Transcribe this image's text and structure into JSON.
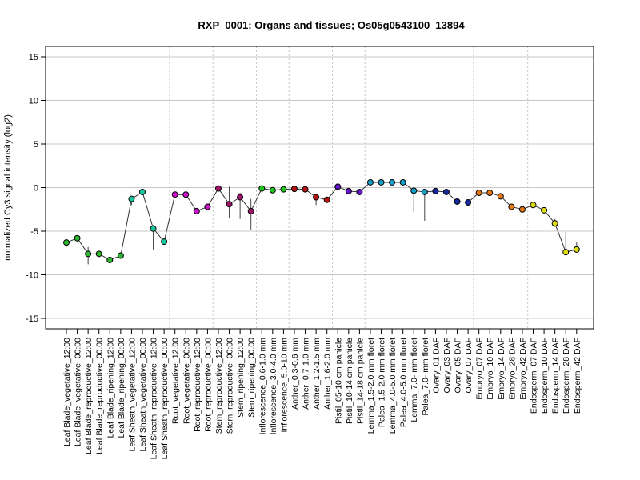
{
  "chart_data": {
    "type": "line",
    "title": "RXP_0001: Organs and tissues; Os05g0543100_13894",
    "xlabel": "",
    "ylabel": "normalized Cy3 signal intensity (log2)",
    "ylim": [
      -16,
      16
    ],
    "yticks": [
      -15,
      -10,
      -5,
      0,
      5,
      10,
      15
    ],
    "grid": true,
    "categories": [
      "Leaf Blade_vegetative_12:00",
      "Leaf Blade_vegetative_00:00",
      "Leaf Blade_reproductive_12:00",
      "Leaf Blade_reproductive_00:00",
      "Leaf Blade_ripening_12:00",
      "Leaf Blade_ripening_00:00",
      "Leaf Sheath_vegetative_12:00",
      "Leaf Sheath_vegetative_00:00",
      "Leaf Sheath_reproductive_12:00",
      "Leaf Sheath_reproductive_00:00",
      "Root_vegetative_12:00",
      "Root_vegetative_00:00",
      "Root_reproductive_12:00",
      "Root_reproductive_00:00",
      "Stem_reproductive_12:00",
      "Stem_reproductive_00:00",
      "Stem_ripening_12:00",
      "Stem_ripening_00:00",
      "Inflorescence_0.6-1.0 mm",
      "Inflorescence_3.0-4.0 mm",
      "Inflorescence_5.0-10 mm",
      "Anther_0.3-0.6 mm",
      "Anther_0.7-1.0 mm",
      "Anther_1.2-1.5 mm",
      "Anther_1.6-2.0 mm",
      "Pistil_05-10 cm panicle",
      "Pistil_10-14 cm panicle",
      "Pistil_14-18 cm panicle",
      "Lemma_1.5-2.0 mm floret",
      "Palea_1.5-2.0 mm floret",
      "Lemma_4.0-5.0 mm floret",
      "Palea_4.0-5.0 mm floret",
      "Lemma_7.0- mm floret",
      "Palea_7.0- mm floret",
      "Ovary_01 DAF",
      "Ovary_03 DAF",
      "Ovary_05 DAF",
      "Ovary_07 DAF",
      "Embryo_07 DAF",
      "Embryo_10 DAF",
      "Embryo_14 DAF",
      "Embryo_28 DAF",
      "Embryo_42 DAF",
      "Endosperm_07 DAF",
      "Endosperm_10 DAF",
      "Endosperm_14 DAF",
      "Endosperm_28 DAF",
      "Endosperm_42 DAF"
    ],
    "series": [
      {
        "values": [
          -6.3,
          -5.8,
          -7.6,
          -7.6,
          -8.3,
          -7.8,
          -1.3,
          -0.5,
          -4.7,
          -6.2,
          -0.8,
          -0.8,
          -2.7,
          -2.2,
          -0.1,
          -1.9,
          -1.1,
          -2.7,
          -0.1,
          -0.3,
          -0.2,
          -0.15,
          -0.2,
          -1.1,
          -1.4,
          0.1,
          -0.4,
          -0.5,
          0.6,
          0.6,
          0.6,
          0.6,
          -0.35,
          -0.5,
          -0.4,
          -0.5,
          -1.6,
          -1.7,
          -0.6,
          -0.6,
          -1.0,
          -2.2,
          -2.5,
          -2.0,
          -2.6,
          -4.1,
          -7.4,
          -7.1
        ],
        "error_low": [
          -6.8,
          -6.2,
          -8.8,
          -7.7,
          -8.5,
          -7.9,
          -2.0,
          -0.6,
          -7.1,
          -6.3,
          -0.8,
          -1.2,
          -2.9,
          -2.4,
          -0.1,
          -3.5,
          -3.6,
          -4.8,
          -0.1,
          -0.4,
          -0.2,
          -0.2,
          -0.2,
          -2.0,
          -1.6,
          0.1,
          -0.5,
          -0.6,
          0.5,
          0.5,
          0.5,
          0.5,
          -2.8,
          -3.8,
          -0.5,
          -0.6,
          -1.7,
          -1.9,
          -0.7,
          -0.7,
          -1.2,
          -2.4,
          -2.6,
          -2.2,
          -3.0,
          -4.5,
          -7.8,
          -7.3
        ],
        "error_high": [
          -6.0,
          -5.5,
          -6.8,
          -7.3,
          -8.1,
          -7.7,
          -1.0,
          -0.4,
          -4.3,
          -6.1,
          -0.7,
          -0.6,
          -2.5,
          -2.1,
          -0.1,
          0.1,
          -0.6,
          -1.3,
          0.0,
          -0.2,
          -0.1,
          -0.1,
          -0.1,
          -0.8,
          -1.2,
          0.2,
          -0.3,
          -0.4,
          0.7,
          0.7,
          0.7,
          0.7,
          -0.2,
          -0.3,
          -0.3,
          -0.4,
          -1.5,
          -1.5,
          -0.5,
          -0.5,
          -0.9,
          -2.0,
          -2.4,
          -1.9,
          -2.3,
          -3.6,
          -5.1,
          -6.2
        ],
        "colors": [
          "#2db52d",
          "#2db52d",
          "#2db52d",
          "#2db52d",
          "#2db52d",
          "#2db52d",
          "#14c8a0",
          "#14c8a0",
          "#14c8a0",
          "#14c8a0",
          "#c814c8",
          "#c814c8",
          "#c814c8",
          "#c814c8",
          "#a0146e",
          "#a0146e",
          "#a0146e",
          "#a0146e",
          "#1ec81e",
          "#1ec81e",
          "#1ec81e",
          "#b41414",
          "#b41414",
          "#b41414",
          "#b41414",
          "#6414c8",
          "#6414c8",
          "#6414c8",
          "#14a0c8",
          "#14a0c8",
          "#14a0c8",
          "#14a0c8",
          "#14a0c8",
          "#14a0c8",
          "#1428a0",
          "#1428a0",
          "#1428a0",
          "#1428a0",
          "#e67814",
          "#e67814",
          "#e67814",
          "#e67814",
          "#e67814",
          "#dcdc14",
          "#dcdc14",
          "#dcdc14",
          "#dcdc14",
          "#dcdc14"
        ]
      }
    ],
    "group_separators_after": [
      5,
      9,
      13,
      17,
      20,
      24,
      27,
      33,
      37,
      42
    ]
  }
}
